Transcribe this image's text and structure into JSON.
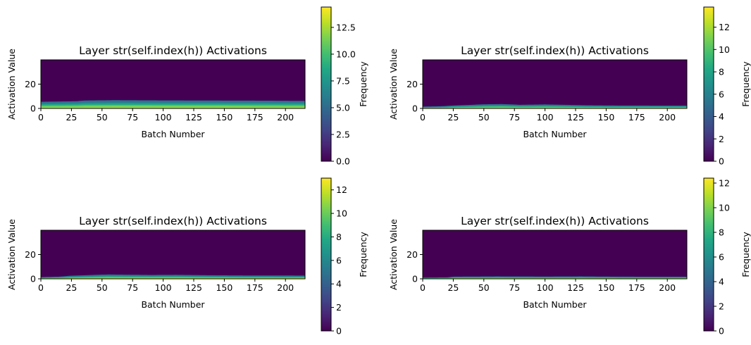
{
  "chart_data": [
    {
      "type": "heatmap",
      "title": "Layer str(self.index(h)) Activations",
      "xlabel": "Batch Number",
      "ylabel": "Activation Value",
      "xlim": [
        0,
        216
      ],
      "ylim": [
        0,
        40
      ],
      "xticks": [
        0,
        25,
        50,
        75,
        100,
        125,
        150,
        175,
        200
      ],
      "yticks": [
        0,
        20
      ],
      "colorbar": {
        "label": "Frequency",
        "range": [
          0,
          14.4
        ],
        "ticks": [
          "0.0",
          "2.5",
          "5.0",
          "7.5",
          "10.0",
          "12.5"
        ]
      },
      "band_profile": {
        "x": [
          0,
          20,
          30,
          35,
          60,
          100,
          140,
          180,
          216
        ],
        "y_top": [
          5.5,
          5.8,
          6.0,
          6.5,
          6.8,
          6.6,
          6.5,
          6.4,
          6.2
        ]
      }
    },
    {
      "type": "heatmap",
      "title": "Layer str(self.index(h)) Activations",
      "xlabel": "Batch Number",
      "ylabel": "Activation Value",
      "xlim": [
        0,
        216
      ],
      "ylim": [
        0,
        40
      ],
      "xticks": [
        0,
        25,
        50,
        75,
        100,
        125,
        150,
        175,
        200
      ],
      "yticks": [
        0,
        20
      ],
      "colorbar": {
        "label": "Frequency",
        "range": [
          0,
          13.8
        ],
        "ticks": [
          "0",
          "2",
          "4",
          "6",
          "8",
          "10",
          "12"
        ]
      },
      "band_profile": {
        "x": [
          0,
          15,
          25,
          50,
          65,
          80,
          100,
          115,
          135,
          160,
          216
        ],
        "y_top": [
          1.5,
          1.8,
          2.4,
          3.4,
          3.6,
          3.0,
          3.3,
          3.0,
          2.6,
          2.4,
          2.3
        ]
      }
    },
    {
      "type": "heatmap",
      "title": "Layer str(self.index(h)) Activations",
      "xlabel": "Batch Number",
      "ylabel": "Activation Value",
      "xlim": [
        0,
        216
      ],
      "ylim": [
        0,
        40
      ],
      "xticks": [
        0,
        25,
        50,
        75,
        100,
        125,
        150,
        175,
        200
      ],
      "yticks": [
        0,
        20
      ],
      "colorbar": {
        "label": "Frequency",
        "range": [
          0,
          13.0
        ],
        "ticks": [
          "0",
          "2",
          "4",
          "6",
          "8",
          "10",
          "12"
        ]
      },
      "band_profile": {
        "x": [
          0,
          15,
          25,
          45,
          55,
          70,
          90,
          110,
          135,
          160,
          216
        ],
        "y_top": [
          1.4,
          1.8,
          2.6,
          3.3,
          3.6,
          3.4,
          3.2,
          3.3,
          3.0,
          2.8,
          2.7
        ]
      }
    },
    {
      "type": "heatmap",
      "title": "Layer str(self.index(h)) Activations",
      "xlabel": "Batch Number",
      "ylabel": "Activation Value",
      "xlim": [
        0,
        216
      ],
      "ylim": [
        0,
        40
      ],
      "xticks": [
        0,
        25,
        50,
        75,
        100,
        125,
        150,
        175,
        200
      ],
      "yticks": [
        0,
        20
      ],
      "colorbar": {
        "label": "Frequency",
        "range": [
          0,
          12.4
        ],
        "ticks": [
          "0",
          "2",
          "4",
          "6",
          "8",
          "10",
          "12"
        ]
      },
      "band_profile": {
        "x": [
          0,
          20,
          25,
          60,
          100,
          130,
          160,
          216
        ],
        "y_top": [
          1.0,
          1.2,
          1.8,
          2.0,
          1.9,
          2.0,
          1.8,
          1.7
        ]
      }
    }
  ]
}
